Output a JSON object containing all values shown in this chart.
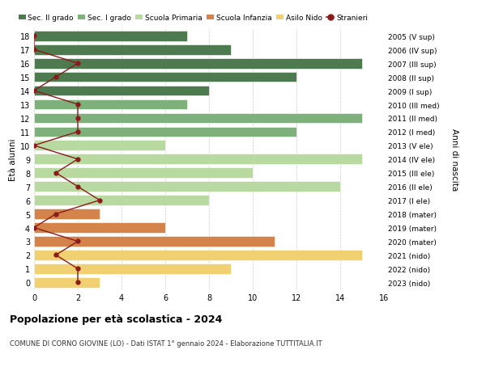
{
  "ages": [
    18,
    17,
    16,
    15,
    14,
    13,
    12,
    11,
    10,
    9,
    8,
    7,
    6,
    5,
    4,
    3,
    2,
    1,
    0
  ],
  "labels_right": [
    "2005 (V sup)",
    "2006 (IV sup)",
    "2007 (III sup)",
    "2008 (II sup)",
    "2009 (I sup)",
    "2010 (III med)",
    "2011 (II med)",
    "2012 (I med)",
    "2013 (V ele)",
    "2014 (IV ele)",
    "2015 (III ele)",
    "2016 (II ele)",
    "2017 (I ele)",
    "2018 (mater)",
    "2019 (mater)",
    "2020 (mater)",
    "2021 (nido)",
    "2022 (nido)",
    "2023 (nido)"
  ],
  "bar_values": [
    7,
    9,
    15,
    12,
    8,
    7,
    15,
    12,
    6,
    15,
    10,
    14,
    8,
    3,
    6,
    11,
    15,
    9,
    3
  ],
  "bar_colors": [
    "#4d7a4e",
    "#4d7a4e",
    "#4d7a4e",
    "#4d7a4e",
    "#4d7a4e",
    "#7db07a",
    "#7db07a",
    "#7db07a",
    "#b8d9a0",
    "#b8d9a0",
    "#b8d9a0",
    "#b8d9a0",
    "#b8d9a0",
    "#d4834a",
    "#d4834a",
    "#d4834a",
    "#f0d070",
    "#f0d070",
    "#f0d070"
  ],
  "stranieri": [
    0,
    0,
    2,
    1,
    0,
    2,
    2,
    2,
    0,
    2,
    1,
    2,
    3,
    1,
    0,
    2,
    1,
    2,
    2
  ],
  "stranieri_color": "#8b1a1a",
  "legend_labels": [
    "Sec. II grado",
    "Sec. I grado",
    "Scuola Primaria",
    "Scuola Infanzia",
    "Asilo Nido",
    "Stranieri"
  ],
  "legend_colors": [
    "#4d7a4e",
    "#7db07a",
    "#b8d9a0",
    "#d4834a",
    "#f0d070",
    "#8b1a1a"
  ],
  "title": "Popolazione per età scolastica - 2024",
  "subtitle": "COMUNE DI CORNO GIOVINE (LO) - Dati ISTAT 1° gennaio 2024 - Elaborazione TUTTITALIA.IT",
  "ylabel": "Età alunni",
  "ylabel_right": "Anni di nascita",
  "xlim": [
    0,
    16
  ],
  "xticks": [
    0,
    2,
    4,
    6,
    8,
    10,
    12,
    14,
    16
  ],
  "bg_color": "#ffffff",
  "grid_color": "#cccccc"
}
